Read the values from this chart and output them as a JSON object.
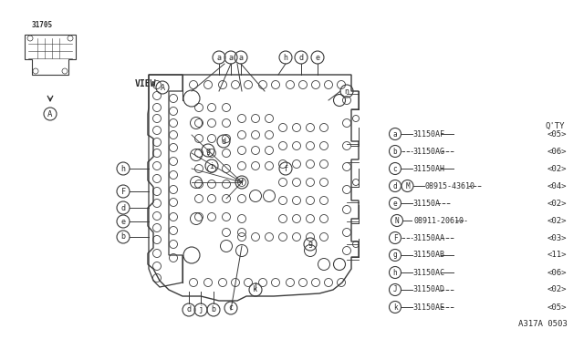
{
  "bg_color": "#ffffff",
  "line_color": "#3a3a3a",
  "text_color": "#2a2a2a",
  "part_number_label": "31705",
  "diagram_code": "A317A 0503",
  "legend": [
    {
      "circle": "a",
      "part": "31150AF",
      "qty": "05",
      "line_before": "solid",
      "line_after": "solid"
    },
    {
      "circle": "b",
      "part": "31150AG",
      "qty": "06",
      "line_before": "dashed",
      "line_after": "dashed"
    },
    {
      "circle": "c",
      "part": "31150AH",
      "qty": "02",
      "line_before": "solid",
      "line_after": "solid"
    },
    {
      "circle": "d",
      "extra": "M",
      "part": "08915-43610",
      "qty": "04",
      "line_before": "solid",
      "line_after": "dashed"
    },
    {
      "circle": "e",
      "part": "31150A",
      "qty": "02",
      "line_before": "solid",
      "line_after": "dashed"
    },
    {
      "circle": "N",
      "part": "08911-20610",
      "qty": "02",
      "line_before": "none",
      "line_after": "dashed"
    },
    {
      "circle": "F",
      "part": "31150AA",
      "qty": "03",
      "line_before": "dashed",
      "line_after": "dashed"
    },
    {
      "circle": "g",
      "part": "31150AB",
      "qty": "11",
      "line_before": "solid",
      "line_after": "solid"
    },
    {
      "circle": "h",
      "part": "31150AC",
      "qty": "06",
      "line_before": "solid",
      "line_after": "solid"
    },
    {
      "circle": "J",
      "part": "31150AD",
      "qty": "02",
      "line_before": "solid",
      "line_after": "dashed"
    },
    {
      "circle": "k",
      "part": "31150AE",
      "qty": "05",
      "line_before": "solid",
      "line_after": "dashed"
    }
  ]
}
